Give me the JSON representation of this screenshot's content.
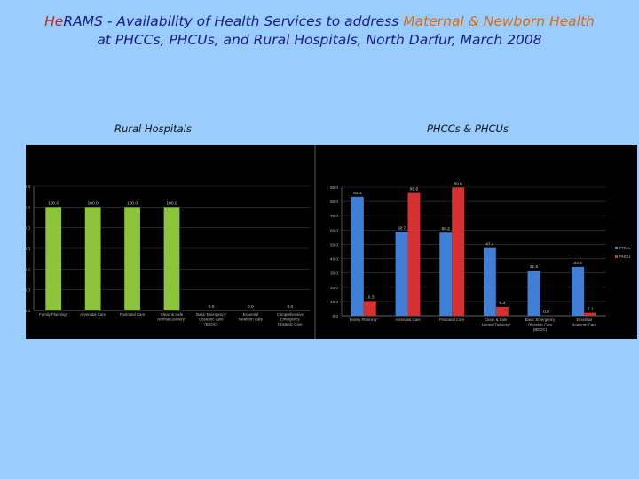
{
  "title": {
    "brand": "He",
    "line1_pre": "RAMS -  Availability of Health Services to address ",
    "line1_accent": "Maternal & Newborn Health",
    "line2": "at PHCCs, PHCUs, and Rural Hospitals, North Darfur, March 2008"
  },
  "colors": {
    "background": "#99ccff",
    "title": "#1a1a8c",
    "accent": "#e06a10",
    "panel": "#000000",
    "green_bar": "#8cc43c",
    "blue_bar": "#3f7fd6",
    "red_bar": "#d63131"
  },
  "chart_data": [
    {
      "type": "bar",
      "title": "Rural Hospitals",
      "categories": [
        "Family Planning*",
        "Antenatal Care",
        "Postnatal Care",
        "Clean & Safe Normal Delivery*",
        "Basic Emergency Obstetric Care (BEOC)",
        "Essential Newborn Care",
        "Comprehensive Emergency Obstetric Care"
      ],
      "series": [
        {
          "values": [
            100.0,
            100.0,
            100.0,
            100.0,
            0.0,
            0.0,
            0.0
          ]
        }
      ],
      "data_labels": [
        "100.0",
        "100.0",
        "100.0",
        "100.0",
        "0.0",
        "0.0",
        "0.0"
      ],
      "ylim": [
        0,
        120
      ],
      "yticks": [
        "0.0",
        "20.0",
        "40.0",
        "60.0",
        "80.0",
        "100.0",
        "120.0"
      ],
      "grid": true,
      "legend": "none"
    },
    {
      "type": "bar",
      "title": "PHCCs & PHCUs",
      "categories": [
        "Family Planning*",
        "Antenatal Care",
        "Postnatal Care",
        "Clean & Safe Normal Delivery*",
        "Basic Emergency Obstetric Care (BEOC)",
        "Essential Newborn Care"
      ],
      "series": [
        {
          "name": "PHCC",
          "values": [
            83.3,
            58.7,
            58.2,
            47.4,
            31.6,
            34.2
          ]
        },
        {
          "name": "PHCU",
          "values": [
            10.3,
            85.9,
            89.8,
            6.3,
            0.0,
            2.1
          ]
        }
      ],
      "data_labels": [
        [
          "83.3",
          "58.7",
          "58.2",
          "47.4",
          "31.6",
          "34.2"
        ],
        [
          "10.3",
          "85.9",
          "89.8",
          "6.3",
          "0.0",
          "2.1"
        ]
      ],
      "ylim": [
        0,
        90
      ],
      "yticks": [
        "0.0",
        "10.0",
        "20.0",
        "30.0",
        "40.0",
        "50.0",
        "60.0",
        "70.0",
        "80.0",
        "90.0"
      ],
      "grid": true,
      "legend": "right"
    }
  ]
}
